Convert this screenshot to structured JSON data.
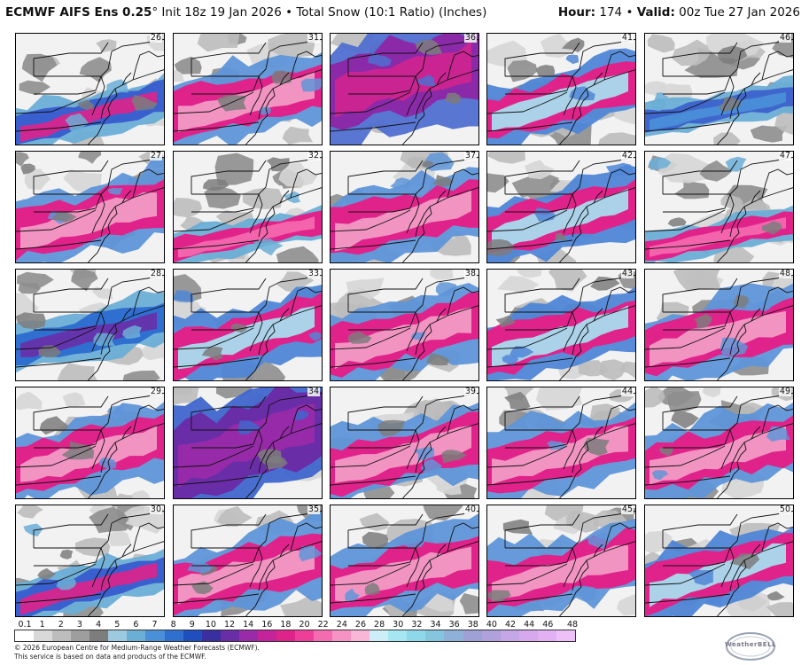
{
  "header": {
    "model": "ECMWF AIFS Ens 0.25",
    "degree": "°",
    "init": "Init 18z 19 Jan 2026",
    "bullet": "•",
    "product": "Total Snow (10:1 Ratio) (Inches)",
    "hour_label": "Hour:",
    "hour_value": "174",
    "valid_label": "Valid:",
    "valid_value": "00z Tue 27 Jan 2026"
  },
  "members": [
    [
      "26",
      "31",
      "36",
      "41",
      "46"
    ],
    [
      "27",
      "32",
      "37",
      "42",
      "47"
    ],
    [
      "28",
      "33",
      "38",
      "43",
      "48"
    ],
    [
      "29",
      "34",
      "39",
      "44",
      "49"
    ],
    [
      "30",
      "35",
      "40",
      "45",
      "50"
    ]
  ],
  "member_style": [
    [
      "blue-south",
      "band-pink",
      "purple-north",
      "band-cyan",
      "blue-patchy"
    ],
    [
      "band-pink",
      "south-narrow",
      "band-pink",
      "band-cyan",
      "south-narrow"
    ],
    [
      "blue-mid",
      "band-cyan",
      "band-pink",
      "band-cyan",
      "band-pink"
    ],
    [
      "band-pink",
      "purple-heavy",
      "band-pink",
      "band-pink",
      "band-pink"
    ],
    [
      "blue-south",
      "band-pink",
      "band-pink",
      "band-pink",
      "band-cyan"
    ]
  ],
  "legend": {
    "ticks": [
      "0.1",
      "1",
      "2",
      "3",
      "4",
      "5",
      "6",
      "7",
      "8",
      "9",
      "10",
      "12",
      "14",
      "16",
      "18",
      "20",
      "22",
      "24",
      "26",
      "28",
      "30",
      "32",
      "34",
      "36",
      "38",
      "40",
      "42",
      "44",
      "46",
      "48"
    ],
    "colors": [
      "#ffffff",
      "#d9d9d9",
      "#bdbdbd",
      "#9e9e9e",
      "#7d7d7d",
      "#9ecae1",
      "#6baed6",
      "#4a90d9",
      "#2f6fd0",
      "#1f4fbf",
      "#3a2fa0",
      "#6a2da8",
      "#9b2aa8",
      "#c4239c",
      "#e0238a",
      "#ef3d9a",
      "#f56bb0",
      "#f792c4",
      "#f9b6d6",
      "#cdeef6",
      "#a5e6f2",
      "#8fd8ea",
      "#86c5e0",
      "#8fb0d8",
      "#9fa0d6",
      "#b0a0dc",
      "#c5a6e6",
      "#d6a8ee",
      "#e2b0f3",
      "#eec0f8"
    ]
  },
  "footer": {
    "line1": "© 2026 European Centre for Medium-Range Weather Forecasts (ECMWF).",
    "line2": "This service is based on data and products of the ECMWF."
  },
  "logo": {
    "text": "WeatherBELL"
  }
}
